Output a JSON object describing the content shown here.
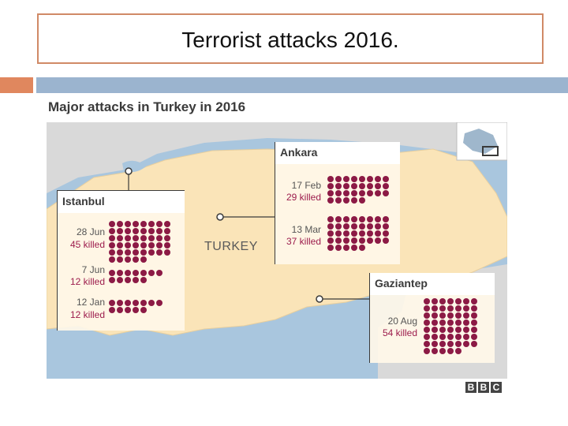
{
  "slide": {
    "title": "Terrorist attacks 2016."
  },
  "map": {
    "title": "Major attacks in Turkey in 2016",
    "country_label": "TURKEY",
    "credit": [
      "B",
      "B",
      "C"
    ],
    "colors": {
      "land": "#fae4b8",
      "water": "#a9c6de",
      "neighbor": "#d9d9d9",
      "dot": "#8c1a45",
      "killed_text": "#9c1c4c"
    }
  },
  "panels": {
    "istanbul": {
      "title": "Istanbul",
      "attacks": [
        {
          "date": "28 Jun",
          "killed_label": "45 killed",
          "killed": 45
        },
        {
          "date": "7 Jun",
          "killed_label": "12 killed",
          "killed": 12
        },
        {
          "date": "12 Jan",
          "killed_label": "12 killed",
          "killed": 12
        }
      ]
    },
    "ankara": {
      "title": "Ankara",
      "attacks": [
        {
          "date": "17 Feb",
          "killed_label": "29 killed",
          "killed": 29
        },
        {
          "date": "13 Mar",
          "killed_label": "37 killed",
          "killed": 37
        }
      ]
    },
    "gaziantep": {
      "title": "Gaziantep",
      "attacks": [
        {
          "date": "20 Aug",
          "killed_label": "54 killed",
          "killed": 54
        }
      ]
    }
  }
}
